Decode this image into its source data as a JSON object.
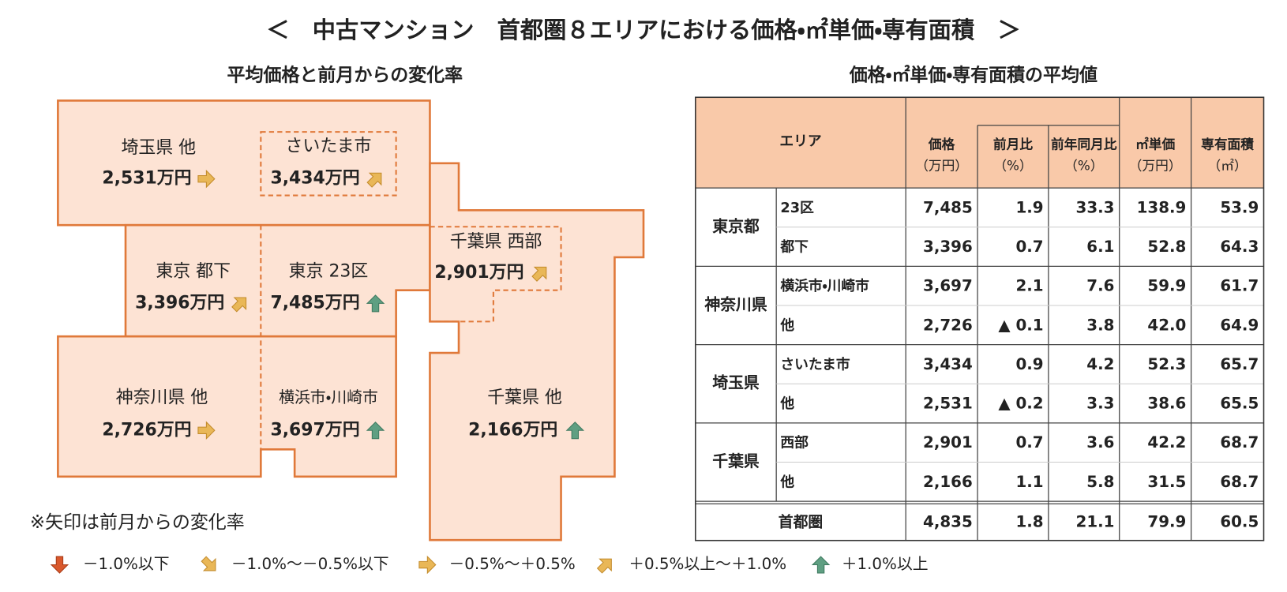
{
  "header": {
    "title": "＜　中古マンション　首都圏８エリアにおける価格・㎡単価・専有面積　＞"
  },
  "map": {
    "title": "平均価格と前月からの変化率",
    "regions": [
      {
        "name": "埼玉県 他",
        "price": "2,531万円"
      },
      {
        "name": "さいたま市",
        "price": "3,434万円"
      },
      {
        "name": "東京 都下",
        "price": "3,396万円"
      },
      {
        "name": "東京 23区",
        "price": "7,485万円"
      },
      {
        "name": "千葉県 西部",
        "price": "2,901万円"
      },
      {
        "name": "神奈川県 他",
        "price": "2,726万円"
      },
      {
        "name": "横浜市・川崎市",
        "price": "3,697万円"
      },
      {
        "name": "千葉県 他",
        "price": "2,166万円"
      }
    ],
    "note": "※矢印は前月からの変化率",
    "legend": [
      "－1.0%以下",
      "－1.0%～－0.5%以下",
      "－0.5%～＋0.5%",
      "＋0.5%以上～＋1.0%",
      "＋1.0%以上"
    ]
  },
  "table": {
    "title": "価格・㎡単価・専有面積の平均値",
    "area_header": "エリア",
    "columns": [
      {
        "label": "価格",
        "unit": "（万円）"
      },
      {
        "label": "前月比",
        "unit": "（%）"
      },
      {
        "label": "前年同月比",
        "unit": "（%）"
      },
      {
        "label": "㎡単価",
        "unit": "（万円）"
      },
      {
        "label": "専有面積",
        "unit": "（㎡）"
      }
    ],
    "groups": [
      {
        "name": "東京都",
        "rows": [
          {
            "label": "23区",
            "values": [
              "7,485",
              "1.9",
              "33.3",
              "138.9",
              "53.9"
            ]
          },
          {
            "label": "都下",
            "values": [
              "3,396",
              "0.7",
              "6.1",
              "52.8",
              "64.3"
            ]
          }
        ]
      },
      {
        "name": "神奈川県",
        "rows": [
          {
            "label": "横浜市・川崎市",
            "values": [
              "3,697",
              "2.1",
              "7.6",
              "59.9",
              "61.7"
            ]
          },
          {
            "label": "他",
            "values": [
              "2,726",
              "▲ 0.1",
              "3.8",
              "42.0",
              "64.9"
            ]
          }
        ]
      },
      {
        "name": "埼玉県",
        "rows": [
          {
            "label": "さいたま市",
            "values": [
              "3,434",
              "0.9",
              "4.2",
              "52.3",
              "65.7"
            ]
          },
          {
            "label": "他",
            "values": [
              "2,531",
              "▲ 0.2",
              "3.3",
              "38.6",
              "65.5"
            ]
          }
        ]
      },
      {
        "name": "千葉県",
        "rows": [
          {
            "label": "西部",
            "values": [
              "2,901",
              "0.7",
              "3.6",
              "42.2",
              "68.7"
            ]
          },
          {
            "label": "他",
            "values": [
              "2,166",
              "1.1",
              "5.8",
              "31.5",
              "68.7"
            ]
          }
        ]
      }
    ],
    "total": {
      "label": "首都圏",
      "values": [
        "4,835",
        "1.8",
        "21.1",
        "79.9",
        "60.5"
      ]
    }
  }
}
